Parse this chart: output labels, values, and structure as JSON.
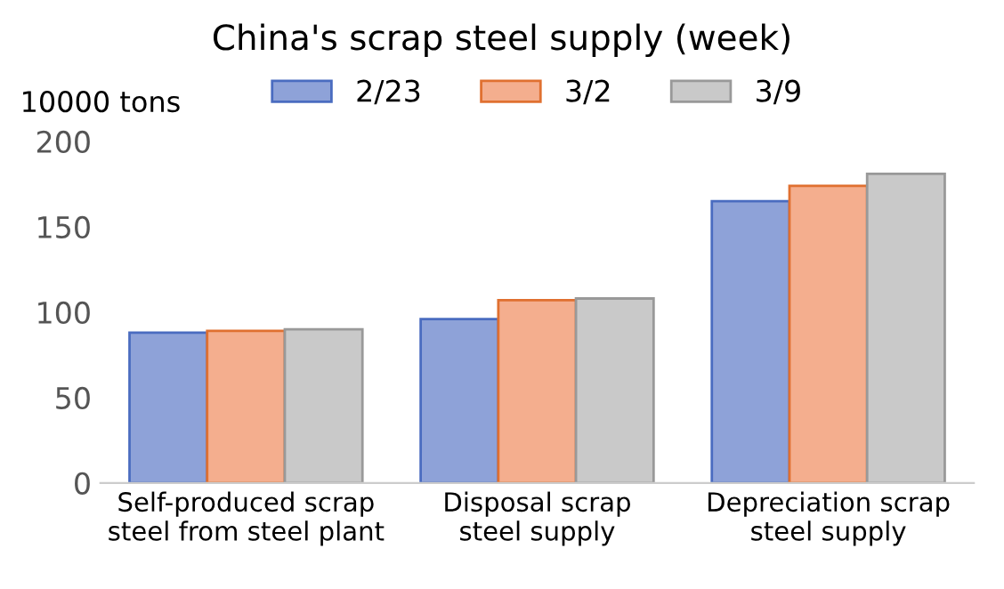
{
  "chart_data": {
    "type": "bar",
    "title": "China's scrap steel supply (week)",
    "ylabel": "10000 tons",
    "categories": [
      "Self-produced scrap\nsteel from steel plant",
      "Disposal scrap\nsteel supply",
      "Depreciation scrap\nsteel supply"
    ],
    "series": [
      {
        "name": "2/23",
        "color": "#8ea2d8",
        "values": [
          88,
          96,
          165
        ]
      },
      {
        "name": "3/2",
        "color": "#f4ae8e",
        "values": [
          89,
          107,
          174
        ]
      },
      {
        "name": "3/9",
        "color": "#c9c9c9",
        "values": [
          90,
          108,
          181
        ]
      }
    ],
    "ylim": [
      0,
      200
    ],
    "yticks": [
      0,
      50,
      100,
      150,
      200
    ],
    "grid": false,
    "legend": "top"
  }
}
